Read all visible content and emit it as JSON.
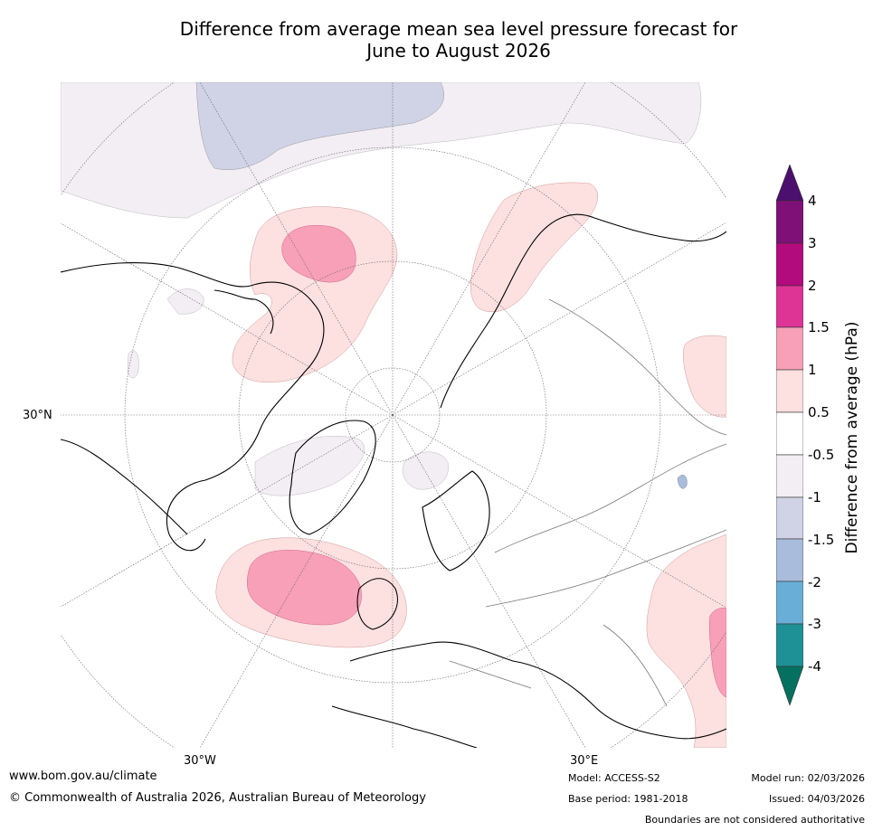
{
  "title": {
    "line1": "Difference from average mean sea level pressure forecast for",
    "line2": "June to August 2026"
  },
  "map": {
    "projection": "North polar stereographic",
    "lat_label": "30°N",
    "lon_labels": [
      "30°W",
      "30°E"
    ]
  },
  "colorbar": {
    "label": "Difference from average (hPa)",
    "ticks": [
      "4",
      "3",
      "2",
      "1.5",
      "1",
      "0.5",
      "-0.5",
      "-1",
      "-1.5",
      "-2",
      "-3",
      "-4"
    ],
    "colors": {
      "over": "#4b0f6e",
      "b_3_4": "#7f1078",
      "b_2_3": "#b20b7e",
      "b_1_5_2": "#dd3495",
      "b_1_1_5": "#f7a0b8",
      "b_0_5_1": "#fde0e0",
      "b_neutral": "#ffffff",
      "b_m1_m0_5": "#f2eef4",
      "b_m1_5_m1": "#d0d2e6",
      "b_m2_m1_5": "#a9bcdc",
      "b_m3_m2": "#69aed6",
      "b_m4_m3": "#1e9196",
      "under": "#067060"
    }
  },
  "footer": {
    "url": "www.bom.gov.au/climate",
    "copyright": "© Commonwealth of Australia 2026, Australian Bureau of Meteorology",
    "model": "Model: ACCESS-S2",
    "base_period": "Base period: 1981-2018",
    "model_run": "Model run: 02/03/2026",
    "issued": "Issued: 04/03/2026",
    "disclaimer": "Boundaries are not considered authoritative"
  }
}
